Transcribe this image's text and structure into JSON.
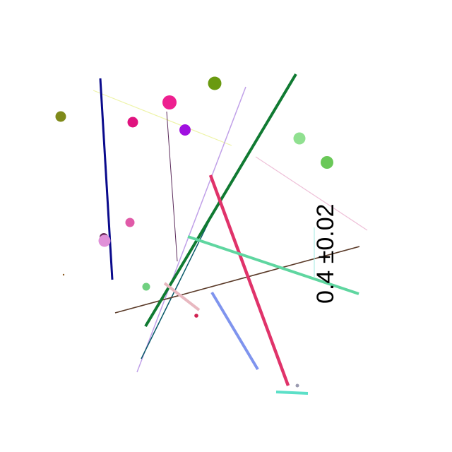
{
  "annotation": {
    "text": "0.4 ±0.02"
  },
  "colors": {
    "background": "#ffffff",
    "navy": "#0a0a8c",
    "dark_green": "#107a32",
    "crimson": "#e0336a",
    "mint": "#5fd6a0",
    "periwinkle": "#7f94ee",
    "aqua": "#5ce0c8",
    "brown": "#5a3a28",
    "lavender": "#c0a0e8",
    "teal": "#0a5a6a",
    "pale_yellow": "#eef4a8",
    "pale_pink": "#eec0d8",
    "dusty_rose": "#e8b8c0",
    "purple_line": "#5a2a5a",
    "olive": "#7f8a1a",
    "magenta": "#e0137f",
    "hot_pink": "#ee2090",
    "violet": "#a010e0",
    "olive_green": "#6a9a10",
    "light_green": "#90e090",
    "green": "#6ac858",
    "orchid": "#e090d8",
    "pink": "#e05aa8"
  }
}
